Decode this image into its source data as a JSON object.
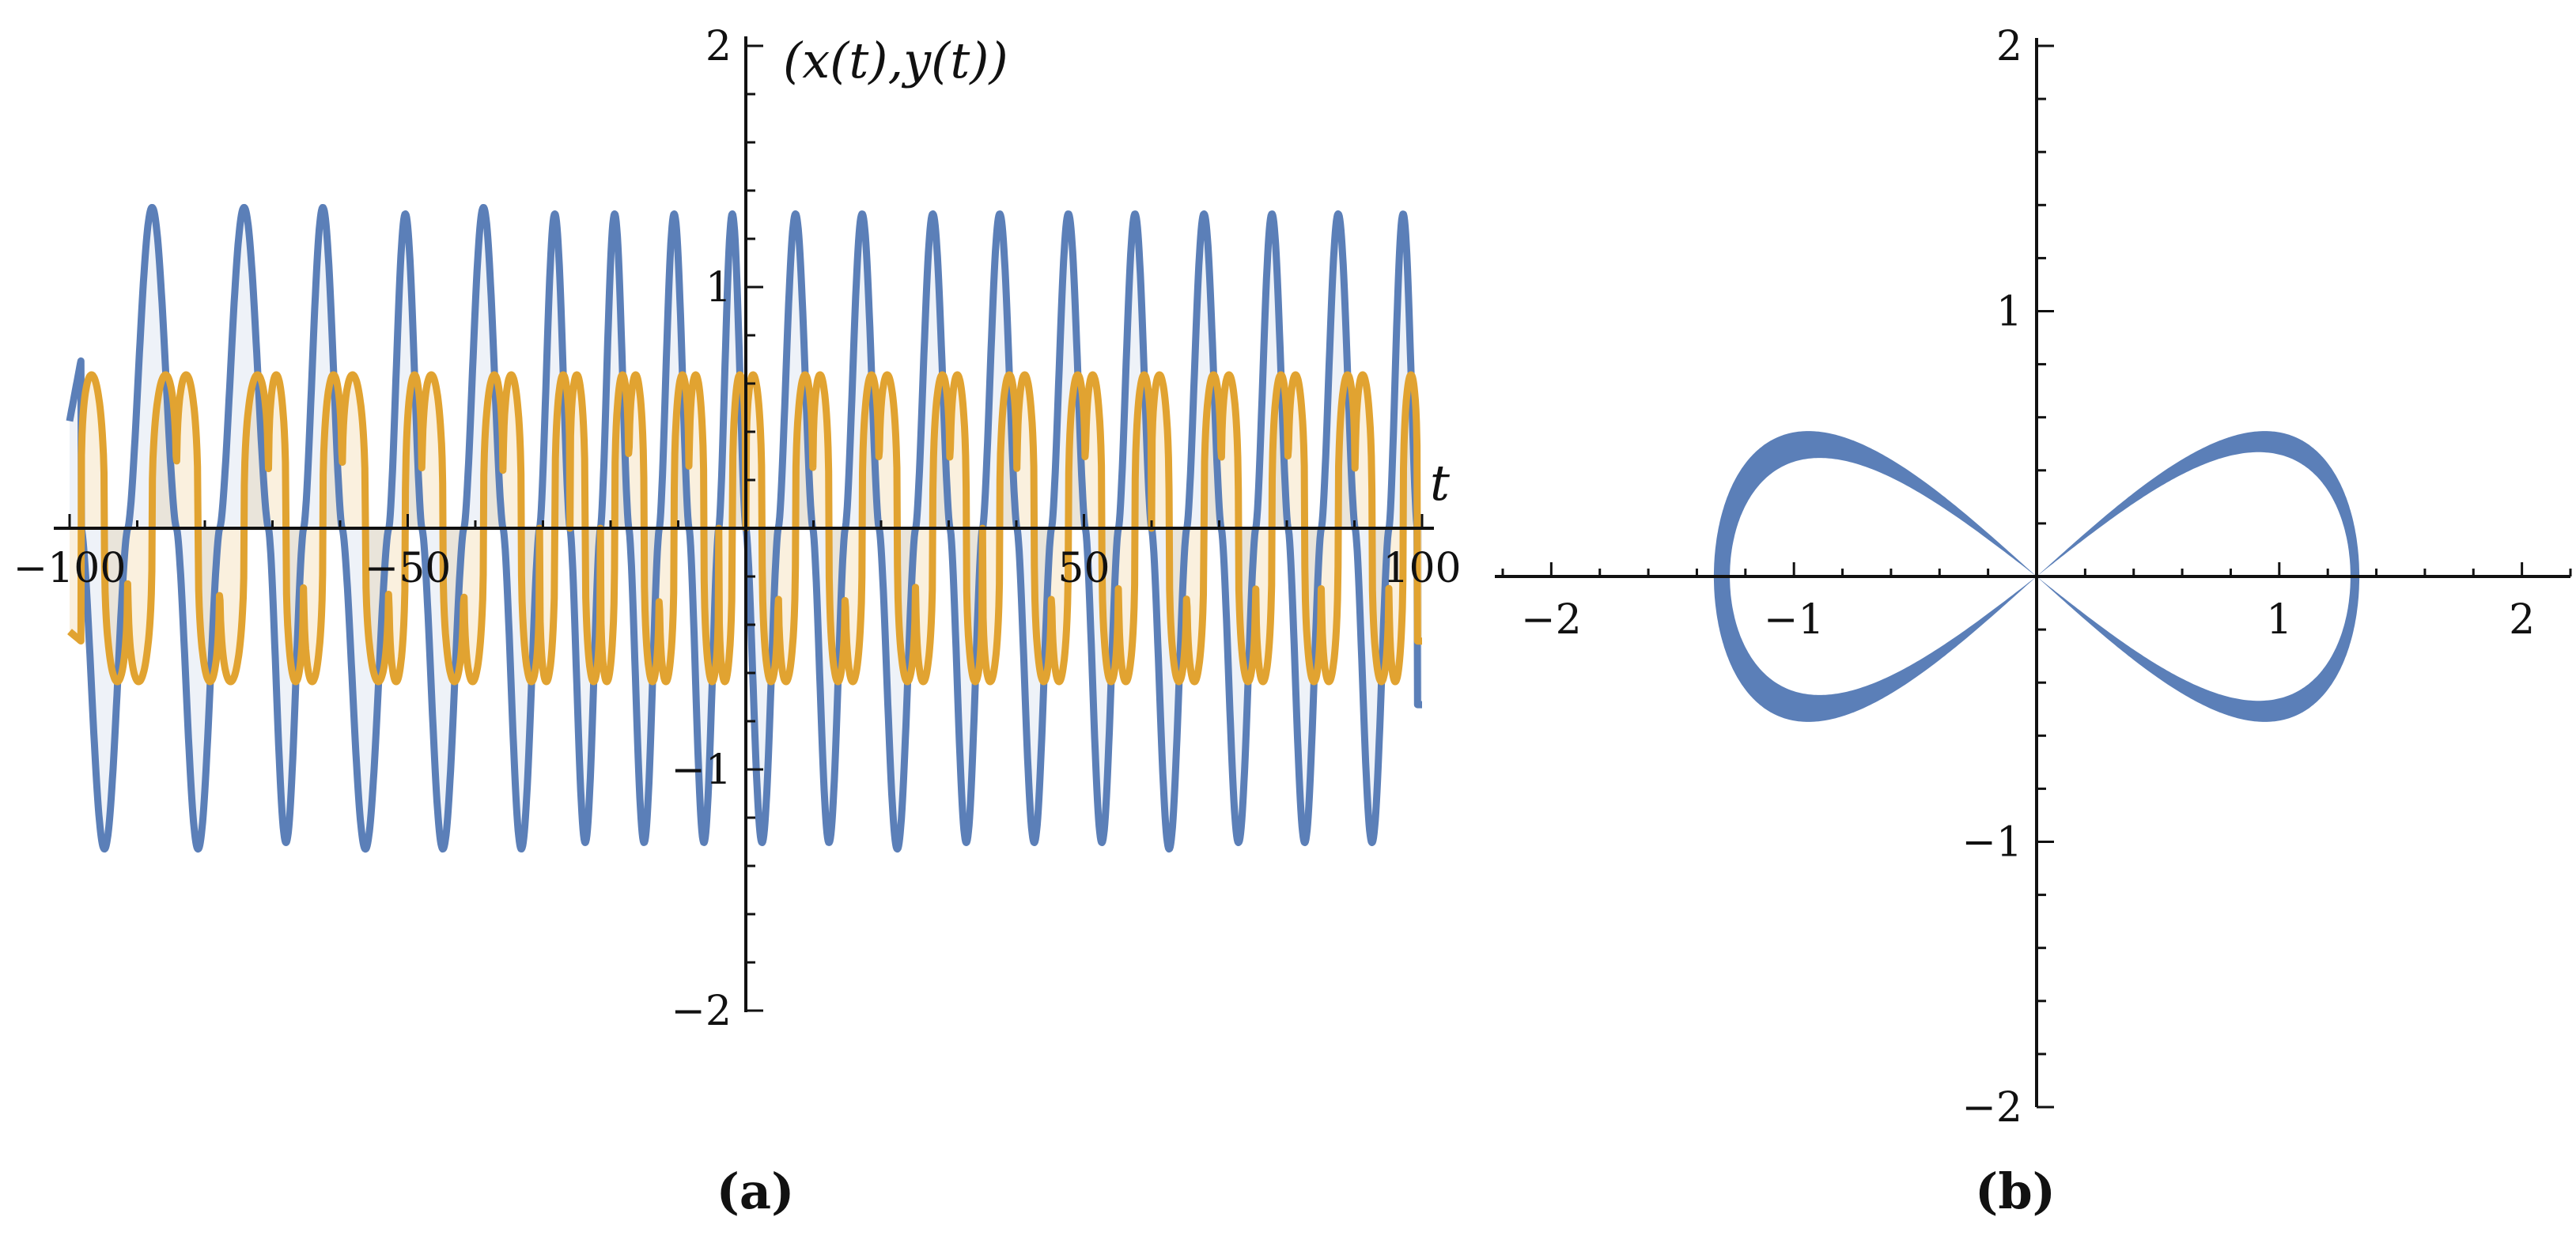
{
  "chart_data": [
    {
      "panel": "(a)",
      "type": "line",
      "xlabel": "t",
      "ylabel": "(x(t),y(t))",
      "xlim": [
        -100,
        100
      ],
      "ylim": [
        -2,
        2
      ],
      "x_ticks": [
        -100,
        -50,
        50,
        100
      ],
      "y_ticks": [
        -2,
        -1,
        1,
        2
      ],
      "x_tick_labels": [
        "−100",
        "−50",
        "50",
        "100"
      ],
      "y_tick_labels": [
        "−2",
        "−1",
        "1",
        "2"
      ],
      "fill_to_axis": true,
      "series": [
        {
          "name": "",
          "color": "#5b7fb8",
          "peak_max": 1.33,
          "peak_min": -1.33,
          "zero_crossings": [
            -98.3,
            -91.4,
            -84.2,
            -77.8,
            -70.6,
            -65.4,
            -59.7,
            -52.8,
            -47.9,
            -41.7,
            -35.9,
            -30.5,
            -26.0,
            -21.5,
            -17.3,
            -12.8,
            -8.4,
            -4.0,
            0.0,
            4.8,
            9.9,
            14.7,
            19.7,
            25.1,
            30.2,
            35.0,
            40.1,
            45.2,
            50.2,
            55.1,
            60.0,
            65.2,
            70.3,
            75.4,
            80.2,
            85.1,
            90.1,
            95.1,
            99.3
          ]
        },
        {
          "name": "",
          "color": "#e1a331",
          "peak_max": 0.78,
          "peak_min": -0.78
        }
      ]
    },
    {
      "panel": "(b)",
      "type": "line",
      "xlabel": "",
      "ylabel": "",
      "xlim": [
        -2.2,
        2.2
      ],
      "ylim": [
        -2,
        2
      ],
      "x_ticks": [
        -2,
        -1,
        1,
        2
      ],
      "y_ticks": [
        -2,
        -1,
        1,
        2
      ],
      "x_tick_labels": [
        "−2",
        "−1",
        "1",
        "2"
      ],
      "y_tick_labels": [
        "−2",
        "−1",
        "1",
        "2"
      ],
      "series": [
        {
          "name": "",
          "color": "#5b7fb8",
          "shape": "figure-eight (lemniscate)",
          "x_extent": [
            -1.33,
            1.33
          ],
          "y_extent": [
            -0.72,
            0.72
          ],
          "left_lobe_thickness": 0.09,
          "right_lobe_thickness": 0.05
        }
      ]
    }
  ],
  "labels": {
    "panel_a": "(a)",
    "panel_b": "(b)"
  }
}
